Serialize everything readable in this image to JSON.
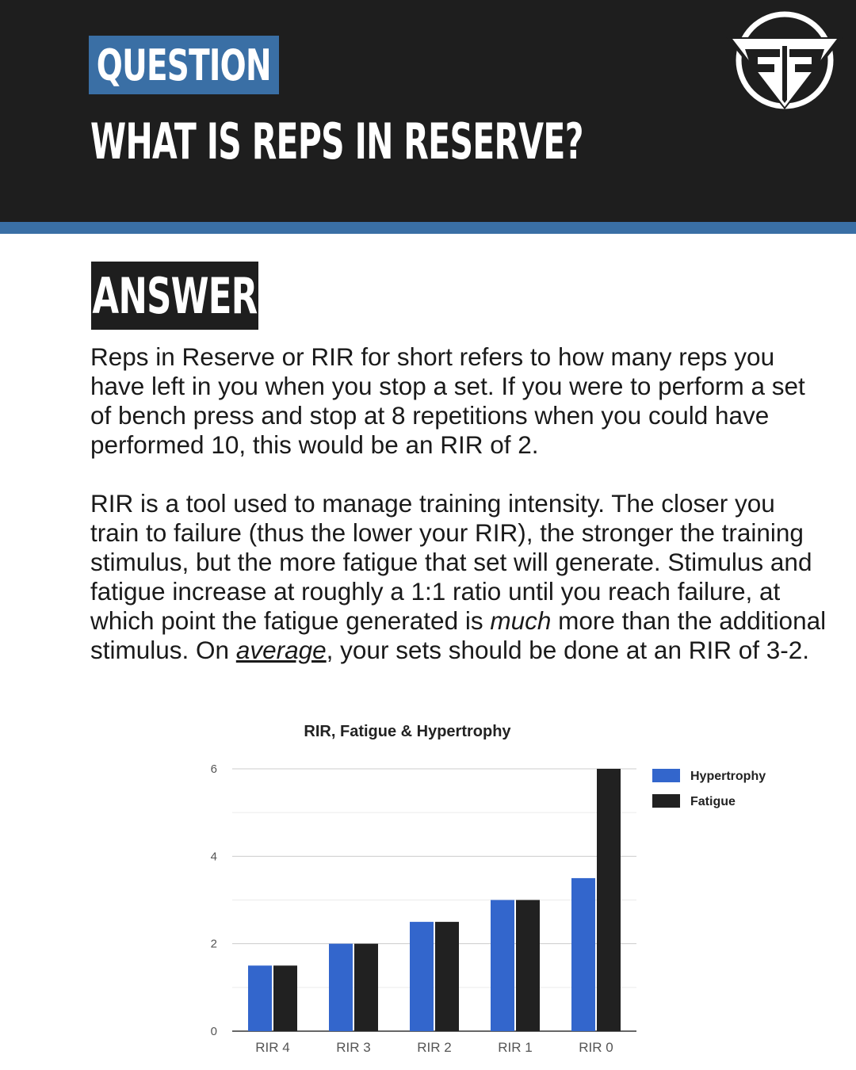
{
  "header": {
    "question_tag": "QUESTION",
    "title": "WHAT IS REPS IN RESERVE?",
    "logo_icon": "brand-logo-icon"
  },
  "answer": {
    "tag": "ANSWER",
    "paragraph1": "Reps in Reserve or RIR for short refers to how many reps you have left in you when you stop a set. If you were to perform a set of bench press and stop at 8 repetitions when you could have performed 10, this would be an RIR of 2.",
    "p2_a": "RIR is a tool used to manage training intensity. The closer you train to failure (thus the lower your RIR), the stronger the training stimulus, but the more fatigue that set will generate. Stimulus and fatigue increase at roughly a 1:1 ratio until you reach failure, at which point the fatigue generated is ",
    "p2_much": "much",
    "p2_b": " more than the additional stimulus. On ",
    "p2_average": "average",
    "p2_c": ", your sets should be done at an RIR of 3-2."
  },
  "colors": {
    "header_bg": "#1e1e1e",
    "accent_blue": "#3a6fa5",
    "hypertrophy": "#3366cc",
    "fatigue": "#212121"
  },
  "chart_data": {
    "type": "bar",
    "title": "RIR, Fatigue & Hypertrophy",
    "categories": [
      "RIR 4",
      "RIR 3",
      "RIR 2",
      "RIR 1",
      "RIR 0"
    ],
    "series": [
      {
        "name": "Hypertrophy",
        "color": "#3366cc",
        "values": [
          1.5,
          2,
          2.5,
          3,
          3.5
        ]
      },
      {
        "name": "Fatigue",
        "color": "#212121",
        "values": [
          1.5,
          2,
          2.5,
          3,
          6
        ]
      }
    ],
    "ylim": [
      0,
      6
    ],
    "yticks": [
      0,
      2,
      4,
      6
    ],
    "grid": true,
    "legend": "right"
  }
}
